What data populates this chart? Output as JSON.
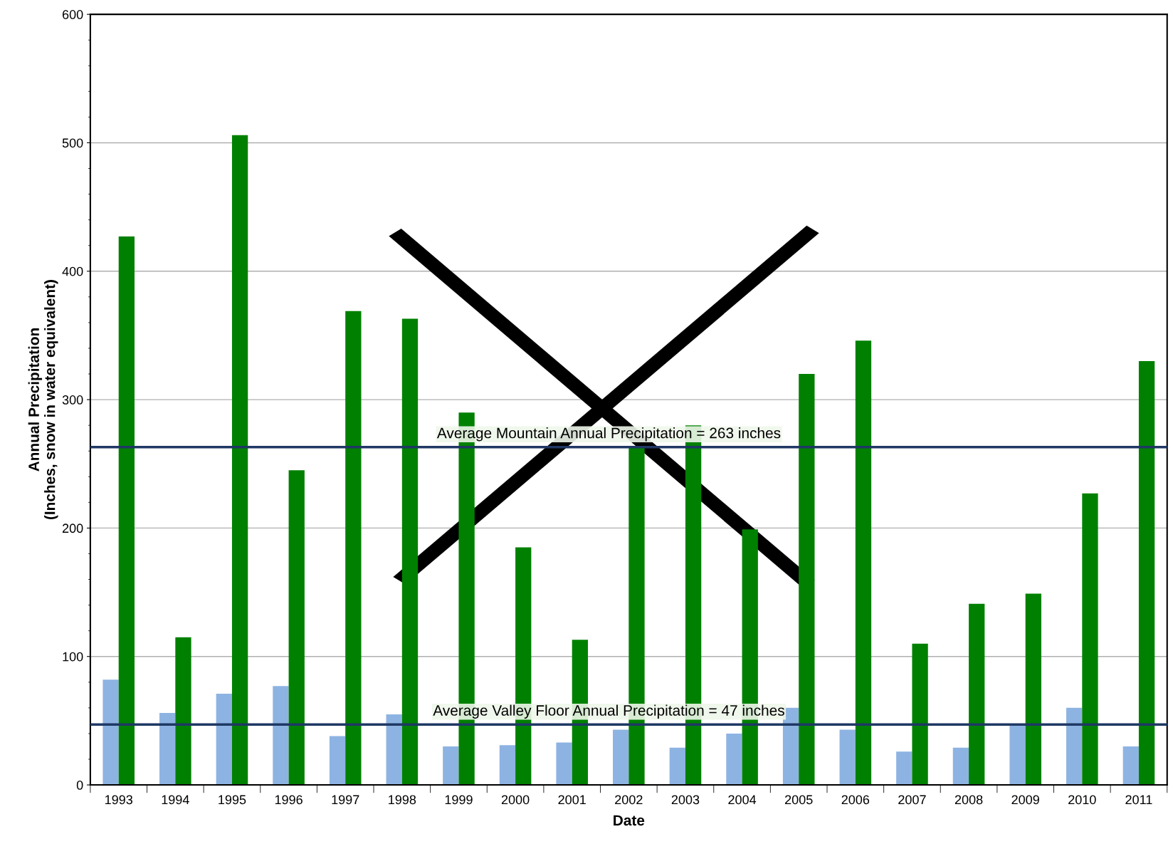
{
  "chart_data": {
    "type": "bar",
    "xlabel": "Date",
    "ylabel": "Annual Precipitation\n(Inches, snow in water equivalent)",
    "categories": [
      "1993",
      "1994",
      "1995",
      "1996",
      "1997",
      "1998",
      "1999",
      "2000",
      "2001",
      "2002",
      "2003",
      "2004",
      "2005",
      "2006",
      "2007",
      "2008",
      "2009",
      "2010",
      "2011"
    ],
    "series": [
      {
        "color": "#8db3e2",
        "values": [
          82,
          56,
          71,
          77,
          38,
          55,
          30,
          31,
          33,
          43,
          29,
          40,
          60,
          43,
          26,
          29,
          46,
          60,
          30
        ]
      },
      {
        "color": "#008000",
        "values": [
          427,
          115,
          506,
          245,
          369,
          363,
          290,
          185,
          113,
          263,
          280,
          199,
          320,
          346,
          110,
          141,
          149,
          227,
          330
        ]
      }
    ],
    "ylim": [
      0,
      600
    ],
    "yticks": [
      0,
      100,
      200,
      300,
      400,
      500,
      600
    ],
    "grid": "y",
    "legend": false,
    "ref_lines": [
      {
        "axis": "y",
        "value": 263,
        "label": "Average Mountain Annual Precipitation = 263 inches",
        "color": "#1f3864"
      },
      {
        "axis": "y",
        "value": 47,
        "label": "Average Valley Floor Annual Precipitation = 47 inches",
        "color": "#1f3864"
      }
    ]
  }
}
